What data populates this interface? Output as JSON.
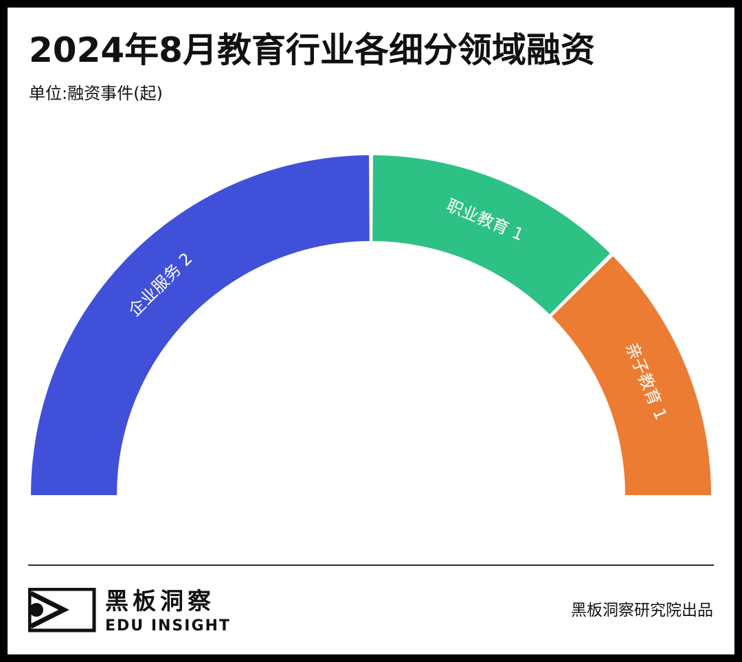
{
  "header": {
    "title": "2024年8月教育行业各细分领域融资",
    "subtitle": "单位:融资事件(起)"
  },
  "chart_data": {
    "type": "pie",
    "title": "2024年8月教育行业各细分领域融资",
    "subtitle": "单位:融资事件(起)",
    "style": "semicircle-donut",
    "slices": [
      {
        "label": "企业服务",
        "value": 2,
        "color": "#4050D9"
      },
      {
        "label": "职业教育",
        "value": 1,
        "color": "#2DC185"
      },
      {
        "label": "亲子教育",
        "value": 1,
        "color": "#EC7C33"
      }
    ],
    "label_color": "#ffffff"
  },
  "footer": {
    "logo_cn": "黑板洞察",
    "logo_en": "EDU INSIGHT",
    "credit": "黑板洞察研究院出品"
  }
}
